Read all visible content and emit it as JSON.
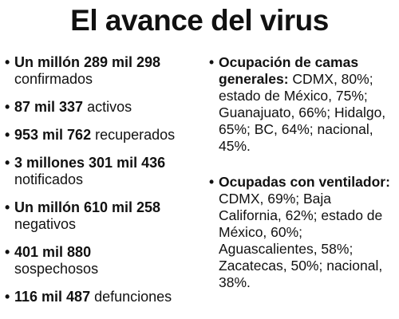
{
  "title": "El avance del virus",
  "left_items": [
    {
      "bullet": "•",
      "bold": "Un millón 289 mil 298",
      "text": "confirmados"
    },
    {
      "bullet": "•",
      "bold": "87 mil 337",
      "text": "activos"
    },
    {
      "bullet": "•",
      "bold": "953 mil 762",
      "text": "recuperados"
    },
    {
      "bullet": "•",
      "bold": "3 millones 301 mil 436",
      "text": "notificados"
    },
    {
      "bullet": "•",
      "bold": "Un millón 610 mil 258",
      "text": "negativos"
    },
    {
      "bullet": "•",
      "bold": "401 mil 880",
      "text": "sospechosos"
    },
    {
      "bullet": "•",
      "bold": "116 mil 487",
      "text": "defunciones"
    }
  ],
  "right_items": [
    {
      "bullet": "•",
      "bold": "Ocupación de camas generales:",
      "text": "CDMX, 80%; estado de México, 75%; Guanajuato, 66%; Hidalgo, 65%; BC, 64%; nacional, 45%."
    },
    {
      "bullet": "•",
      "bold": "Ocupadas con ventilador:",
      "text": "CDMX, 69%; Baja California, 62%; estado de México, 60%; Aguascalientes, 58%; Zacatecas, 50%; nacional, 38%."
    }
  ]
}
